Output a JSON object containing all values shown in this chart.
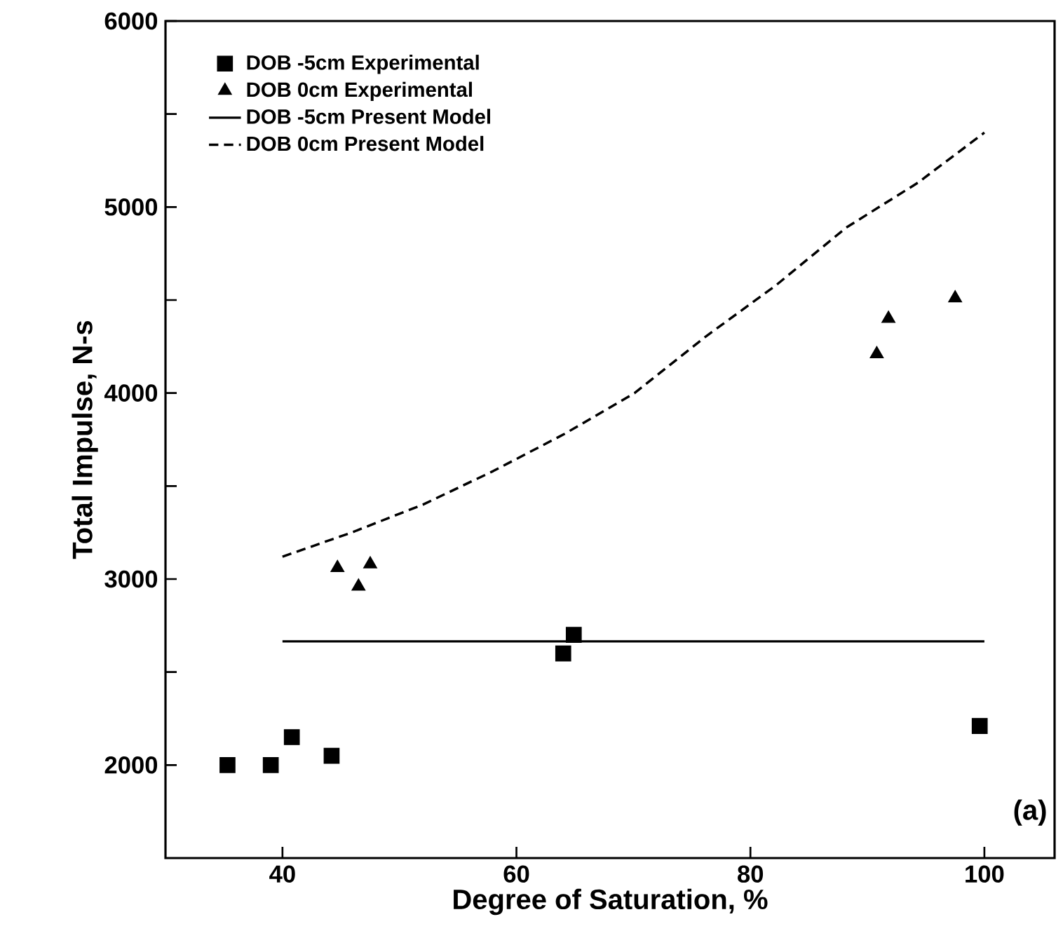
{
  "chart_data": {
    "type": "scatter",
    "xlabel": "Degree of Saturation, %",
    "ylabel": "Total Impulse, N-s",
    "xlim": [
      30,
      106
    ],
    "ylim": [
      1500,
      6000
    ],
    "xticks": [
      40,
      60,
      80,
      100
    ],
    "yticks": [
      2000,
      {
        "value": 2500,
        "label": null
      },
      3000,
      {
        "value": 3500,
        "label": null
      },
      4000,
      {
        "value": 4500,
        "label": null
      },
      5000,
      {
        "value": 5500,
        "label": null
      },
      6000
    ],
    "legend": "top left",
    "grid": false,
    "annotations": [
      "(a)"
    ],
    "series": [
      {
        "name": "DOB -5cm Experimental",
        "marker": "square",
        "color": "#000000",
        "x": [
          35.3,
          39.0,
          40.8,
          44.2,
          64.0,
          64.9,
          99.6
        ],
        "values": [
          2000,
          2000,
          2150,
          2050,
          2600,
          2700,
          2210
        ]
      },
      {
        "name": "DOB 0cm Experimental",
        "marker": "triangle",
        "color": "#000000",
        "x": [
          44.7,
          46.5,
          47.5,
          90.8,
          91.8,
          97.5
        ],
        "values": [
          3060,
          2960,
          3080,
          4210,
          4400,
          4510
        ]
      },
      {
        "name": "DOB -5cm Present Model",
        "type": "line",
        "line_style": "solid",
        "color": "#000000",
        "x": [
          40,
          100
        ],
        "values": [
          2665,
          2665
        ]
      },
      {
        "name": "DOB 0cm Present Model",
        "type": "line",
        "line_style": "dashed",
        "color": "#000000",
        "x": [
          40,
          45.9,
          52,
          58,
          64.1,
          70.1,
          76.1,
          82.2,
          88.2,
          94.3,
          100
        ],
        "values": [
          3120,
          3250,
          3400,
          3580,
          3780,
          4000,
          4300,
          4580,
          4890,
          5130,
          5400
        ]
      }
    ]
  }
}
